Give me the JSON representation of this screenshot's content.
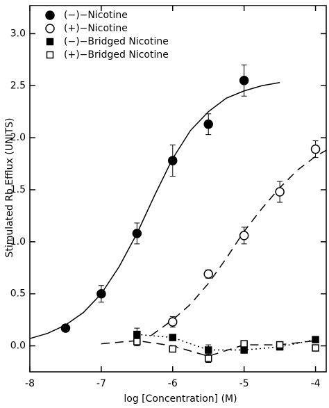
{
  "chart_data": {
    "type": "scatter",
    "x_label": "log [Concentration]  (M)",
    "y_label": "Stimulated Rb Efflux (UNITS)",
    "xlim": [
      -8,
      -3.85
    ],
    "ylim": [
      -0.25,
      3.27
    ],
    "xticks": [
      -8,
      -7,
      -6,
      -5,
      -4
    ],
    "yticks": [
      {
        "value": 0,
        "label": "0.0"
      },
      {
        "value": 0.5,
        "label": "0.5"
      },
      {
        "value": 1,
        "label": "1.0"
      },
      {
        "value": 1.5,
        "label": "1.5"
      },
      {
        "value": 2,
        "label": "2.0"
      },
      {
        "value": 2.5,
        "label": "2.5"
      },
      {
        "value": 3,
        "label": "3.0"
      }
    ],
    "legend": "upper left",
    "series": [
      {
        "name": "(−)−Nicotine",
        "marker": "circle",
        "filled": true,
        "color": "#000000",
        "x": [
          -7.5,
          -7,
          -6.5,
          -6,
          -5.5,
          -5
        ],
        "values": [
          0.17,
          0.5,
          1.08,
          1.78,
          2.13,
          2.55
        ],
        "errors": [
          null,
          0.08,
          0.1,
          0.15,
          0.1,
          0.15
        ]
      },
      {
        "name": "(+)−Nicotine",
        "marker": "circle",
        "filled": false,
        "color": "#000000",
        "x": [
          -6,
          -5.5,
          -5,
          -4.5,
          -4
        ],
        "values": [
          0.23,
          0.69,
          1.06,
          1.48,
          1.89
        ],
        "errors": [
          0.05,
          0.04,
          0.08,
          0.1,
          0.08
        ]
      },
      {
        "name": "(−)−Bridged Nicotine",
        "marker": "square",
        "filled": true,
        "color": "#000000",
        "x": [
          -6.5,
          -6,
          -5.5,
          -5,
          -4.5,
          -4
        ],
        "values": [
          0.11,
          0.08,
          -0.04,
          -0.04,
          -0.01,
          0.06
        ],
        "errors": [
          0.06,
          null,
          0.05,
          null,
          null,
          0.03
        ]
      },
      {
        "name": "(+)−Bridged Nicotine",
        "marker": "square",
        "filled": false,
        "color": "#000000",
        "x": [
          -6.5,
          -6,
          -5.5,
          -5,
          -4.5,
          -4
        ],
        "values": [
          0.04,
          -0.03,
          -0.12,
          0.02,
          0.01,
          -0.02
        ],
        "errors": [
          0.04,
          null,
          0.04,
          null,
          null,
          0.03
        ]
      }
    ],
    "lines": [
      {
        "style": "solid",
        "x": [
          -8,
          -7.75,
          -7.5,
          -7.25,
          -7,
          -6.75,
          -6.5,
          -6.25,
          -6,
          -5.75,
          -5.5,
          -5.25,
          -5,
          -4.75,
          -4.5
        ],
        "values": [
          0.07,
          0.12,
          0.2,
          0.32,
          0.5,
          0.76,
          1.08,
          1.45,
          1.8,
          2.07,
          2.25,
          2.38,
          2.45,
          2.5,
          2.53
        ]
      },
      {
        "style": "dashed",
        "x": [
          -6.3,
          -6,
          -5.75,
          -5.5,
          -5.25,
          -5,
          -4.75,
          -4.5,
          -4.25,
          -4,
          -3.85
        ],
        "values": [
          0.1,
          0.25,
          0.4,
          0.6,
          0.84,
          1.1,
          1.32,
          1.52,
          1.69,
          1.82,
          1.88
        ]
      },
      {
        "style": "dotted",
        "x": [
          -6.5,
          -6,
          -5.5,
          -5,
          -4.5,
          -4
        ],
        "values": [
          0.11,
          0.08,
          -0.04,
          -0.04,
          -0.01,
          0.06
        ]
      },
      {
        "style": "dashed",
        "x": [
          -7,
          -6.5,
          -6,
          -5.5,
          -5,
          -4.5,
          -4
        ],
        "values": [
          0.02,
          0.05,
          0.0,
          -0.1,
          0.01,
          0.01,
          0.05
        ]
      }
    ]
  }
}
